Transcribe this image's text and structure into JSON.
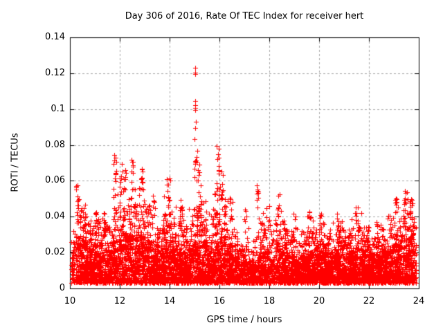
{
  "chart_data": {
    "type": "scatter",
    "title": "Day 306 of 2016, Rate Of TEC Index for receiver hert",
    "xlabel": "GPS time / hours",
    "ylabel": "ROTI / TECUs",
    "xlim": [
      10,
      24
    ],
    "ylim": [
      0,
      0.14
    ],
    "xticks": [
      10,
      12,
      14,
      16,
      18,
      20,
      22,
      24
    ],
    "xtick_labels": [
      "10",
      "12",
      "14",
      "16",
      "18",
      "20",
      "22",
      "24"
    ],
    "yticks": [
      0,
      0.02,
      0.04,
      0.06,
      0.08,
      0.1,
      0.12,
      0.14
    ],
    "ytick_labels": [
      "0",
      "0.02",
      "0.04",
      "0.06",
      "0.08",
      "0.1",
      "0.12",
      "0.14"
    ],
    "grid": true,
    "legend": "none",
    "marker": "plus-cross",
    "marker_color": "#ff0000",
    "grid_color": "#a8a8a8",
    "axis_color": "#000000",
    "x_data_range": [
      10.05,
      23.9
    ],
    "baseline_bins_note": "each bin: [x_start_hour, dense_band_top_ROTI, scatter_envelope_top_ROTI, density_multiplier]; bin width 0.25 h; dense noise floor ~0.003 TECU",
    "baseline_bins": [
      [
        10.0,
        0.02,
        0.032,
        0.5
      ],
      [
        10.25,
        0.028,
        0.05,
        1
      ],
      [
        10.5,
        0.026,
        0.044,
        1
      ],
      [
        10.75,
        0.022,
        0.038,
        1
      ],
      [
        11.0,
        0.024,
        0.042,
        1
      ],
      [
        11.25,
        0.022,
        0.042,
        1
      ],
      [
        11.5,
        0.02,
        0.036,
        1
      ],
      [
        11.75,
        0.026,
        0.055,
        1
      ],
      [
        12.0,
        0.03,
        0.058,
        1
      ],
      [
        12.25,
        0.028,
        0.052,
        1
      ],
      [
        12.5,
        0.03,
        0.058,
        1
      ],
      [
        12.75,
        0.028,
        0.056,
        1
      ],
      [
        13.0,
        0.026,
        0.054,
        1
      ],
      [
        13.25,
        0.022,
        0.048,
        1
      ],
      [
        13.5,
        0.02,
        0.04,
        1
      ],
      [
        13.75,
        0.024,
        0.052,
        1
      ],
      [
        14.0,
        0.026,
        0.05,
        1
      ],
      [
        14.25,
        0.022,
        0.046,
        1
      ],
      [
        14.5,
        0.02,
        0.04,
        1
      ],
      [
        14.75,
        0.024,
        0.046,
        1
      ],
      [
        15.0,
        0.026,
        0.055,
        1
      ],
      [
        15.25,
        0.024,
        0.05,
        1
      ],
      [
        15.5,
        0.022,
        0.042,
        1
      ],
      [
        15.75,
        0.026,
        0.055,
        1
      ],
      [
        16.0,
        0.028,
        0.06,
        1
      ],
      [
        16.25,
        0.024,
        0.05,
        1
      ],
      [
        16.5,
        0.018,
        0.034,
        0.9
      ],
      [
        16.75,
        0.014,
        0.026,
        0.8
      ],
      [
        17.0,
        0.015,
        0.035,
        0.8
      ],
      [
        17.25,
        0.014,
        0.028,
        0.8
      ],
      [
        17.5,
        0.018,
        0.045,
        0.9
      ],
      [
        17.75,
        0.02,
        0.048,
        1
      ],
      [
        18.0,
        0.016,
        0.04,
        0.55
      ],
      [
        18.25,
        0.022,
        0.046,
        1
      ],
      [
        18.5,
        0.02,
        0.04,
        1
      ],
      [
        18.75,
        0.018,
        0.034,
        0.9
      ],
      [
        19.0,
        0.016,
        0.036,
        0.9
      ],
      [
        19.25,
        0.018,
        0.034,
        1
      ],
      [
        19.5,
        0.02,
        0.04,
        1
      ],
      [
        19.75,
        0.019,
        0.034,
        1
      ],
      [
        20.0,
        0.021,
        0.038,
        1
      ],
      [
        20.25,
        0.019,
        0.034,
        1
      ],
      [
        20.5,
        0.02,
        0.037,
        1
      ],
      [
        20.75,
        0.022,
        0.04,
        1
      ],
      [
        21.0,
        0.019,
        0.034,
        1
      ],
      [
        21.25,
        0.02,
        0.04,
        1
      ],
      [
        21.5,
        0.022,
        0.044,
        1
      ],
      [
        21.75,
        0.02,
        0.038,
        1
      ],
      [
        22.0,
        0.018,
        0.034,
        1
      ],
      [
        22.25,
        0.019,
        0.036,
        1
      ],
      [
        22.5,
        0.02,
        0.034,
        1
      ],
      [
        22.75,
        0.022,
        0.042,
        1
      ],
      [
        23.0,
        0.024,
        0.046,
        1
      ],
      [
        23.25,
        0.026,
        0.05,
        1
      ],
      [
        23.5,
        0.028,
        0.05,
        1
      ],
      [
        23.75,
        0.024,
        0.045,
        0.7
      ]
    ],
    "spike_clusters_note": "each: [x_hour, roti_min, roti_max, point_count]",
    "spike_clusters": [
      [
        10.3,
        0.044,
        0.058,
        9
      ],
      [
        10.55,
        0.036,
        0.047,
        7
      ],
      [
        11.05,
        0.036,
        0.044,
        6
      ],
      [
        11.35,
        0.036,
        0.043,
        5
      ],
      [
        11.82,
        0.052,
        0.075,
        13
      ],
      [
        12.05,
        0.048,
        0.07,
        11
      ],
      [
        12.22,
        0.05,
        0.066,
        8
      ],
      [
        12.5,
        0.054,
        0.074,
        11
      ],
      [
        12.9,
        0.048,
        0.067,
        13
      ],
      [
        13.35,
        0.04,
        0.052,
        7
      ],
      [
        13.95,
        0.048,
        0.062,
        9
      ],
      [
        14.45,
        0.038,
        0.05,
        6
      ],
      [
        15.03,
        0.058,
        0.077,
        9
      ],
      [
        15.2,
        0.05,
        0.07,
        7
      ],
      [
        15.95,
        0.052,
        0.079,
        11
      ],
      [
        16.1,
        0.048,
        0.068,
        9
      ],
      [
        16.45,
        0.038,
        0.055,
        6
      ],
      [
        17.05,
        0.034,
        0.046,
        5
      ],
      [
        17.55,
        0.044,
        0.058,
        9
      ],
      [
        18.4,
        0.038,
        0.053,
        8
      ],
      [
        19.05,
        0.032,
        0.042,
        5
      ],
      [
        19.55,
        0.033,
        0.045,
        6
      ],
      [
        20.05,
        0.032,
        0.042,
        5
      ],
      [
        20.75,
        0.032,
        0.042,
        6
      ],
      [
        21.5,
        0.035,
        0.048,
        8
      ],
      [
        22.3,
        0.03,
        0.038,
        5
      ],
      [
        23.1,
        0.038,
        0.053,
        9
      ],
      [
        23.45,
        0.04,
        0.055,
        10
      ],
      [
        23.65,
        0.038,
        0.05,
        8
      ]
    ],
    "peak_points_note": "explicit isolated outliers of the ~15 h storm spike: [x_hour, ROTI]",
    "peak_points": [
      [
        15.03,
        0.123
      ],
      [
        15.02,
        0.1205
      ],
      [
        15.04,
        0.1195
      ],
      [
        15.03,
        0.1045
      ],
      [
        15.02,
        0.1022
      ],
      [
        15.03,
        0.1008
      ],
      [
        15.04,
        0.0995
      ],
      [
        15.05,
        0.093
      ],
      [
        15.02,
        0.0896
      ],
      [
        15.0,
        0.0832
      ],
      [
        15.89,
        0.0794
      ],
      [
        15.11,
        0.0768
      ]
    ]
  }
}
